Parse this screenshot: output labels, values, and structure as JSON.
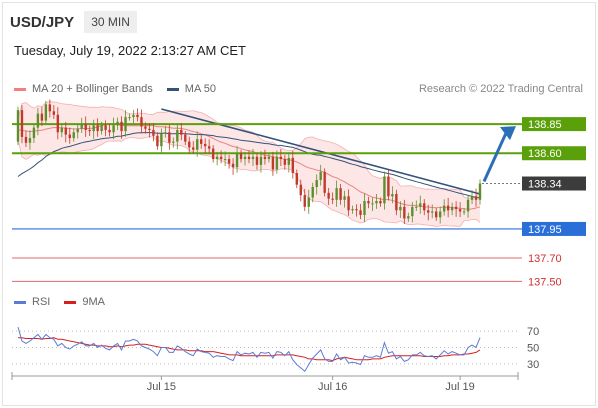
{
  "header": {
    "symbol": "USD/JPY",
    "timeframe": "30 MIN"
  },
  "timestamp": "Tuesday, July 19, 2022 2:13:27 AM CET",
  "legend": {
    "ma20": {
      "label": "MA 20 + Bollinger Bands",
      "color": "#f08080"
    },
    "ma50": {
      "label": "MA 50",
      "color": "#34527a"
    }
  },
  "credit": "Research © 2022 Trading Central",
  "rsi_legend": {
    "rsi": {
      "label": "RSI",
      "color": "#5b7bd5"
    },
    "ma9": {
      "label": "9MA",
      "color": "#d62020"
    }
  },
  "colors": {
    "green": "#5aa00a",
    "blue": "#2a6ed8",
    "red": "#e06a6a",
    "up_candle": "#5c8f2c",
    "down_candle": "#c0392b",
    "arrow": "#2b6fb9",
    "current": "#3c3c3c"
  },
  "chart_data": [
    {
      "type": "candlestick",
      "ylim": [
        137.4,
        139.1
      ],
      "x_tick_labels": [
        "Jul 15",
        "Jul 16",
        "Jul 19"
      ],
      "levels": [
        {
          "price": 138.85,
          "label": "138.85",
          "kind": "resistance"
        },
        {
          "price": 138.6,
          "label": "138.60",
          "kind": "resistance"
        },
        {
          "price": 138.34,
          "label": "138.34",
          "kind": "current"
        },
        {
          "price": 137.95,
          "label": "137.95",
          "kind": "pivot"
        },
        {
          "price": 137.7,
          "label": "137.70",
          "kind": "support"
        },
        {
          "price": 137.5,
          "label": "137.50",
          "kind": "support"
        }
      ],
      "close": [
        138.97,
        138.74,
        138.69,
        138.73,
        138.82,
        138.94,
        138.88,
        139.02,
        138.96,
        138.93,
        138.78,
        138.82,
        138.76,
        138.73,
        138.78,
        138.81,
        138.85,
        138.8,
        138.79,
        138.84,
        138.79,
        138.84,
        138.8,
        138.78,
        138.84,
        138.87,
        138.79,
        138.91,
        138.91,
        138.93,
        138.91,
        138.83,
        138.81,
        138.8,
        138.75,
        138.66,
        138.77,
        138.78,
        138.69,
        138.7,
        138.8,
        138.76,
        138.7,
        138.65,
        138.63,
        138.72,
        138.68,
        138.66,
        138.64,
        138.55,
        138.57,
        138.55,
        138.55,
        138.51,
        138.48,
        138.6,
        138.55,
        138.57,
        138.55,
        138.57,
        138.5,
        138.57,
        138.55,
        138.57,
        138.46,
        138.57,
        138.55,
        138.5,
        138.56,
        138.43,
        138.33,
        138.24,
        138.14,
        138.22,
        138.31,
        138.37,
        138.44,
        138.26,
        138.21,
        138.2,
        138.3,
        138.2,
        138.23,
        138.11,
        138.12,
        138.11,
        138.07,
        138.19,
        138.17,
        138.17,
        138.19,
        138.17,
        138.4,
        138.23,
        138.25,
        138.11,
        138.14,
        138.04,
        138.06,
        138.14,
        138.14,
        138.17,
        138.11,
        138.09,
        138.1,
        138.05,
        138.1,
        138.15,
        138.11,
        138.14,
        138.12,
        138.1,
        138.1,
        138.2,
        138.23,
        138.2,
        138.34
      ],
      "series": [
        {
          "name": "MA 50",
          "values": [
            138.4,
            138.425,
            138.445,
            138.465,
            138.489,
            138.519,
            138.542,
            138.572,
            138.595,
            138.614,
            138.627,
            138.642,
            138.652,
            138.659,
            138.669,
            138.679,
            138.69,
            138.697,
            138.703,
            138.712,
            138.717,
            138.724,
            138.729,
            138.732,
            138.738,
            138.745,
            138.747,
            138.756,
            138.762,
            138.77,
            138.775,
            138.776,
            138.777,
            138.777,
            138.776,
            138.772,
            138.772,
            138.772,
            138.769,
            138.767,
            138.769,
            138.769,
            138.768,
            138.765,
            138.762,
            138.761,
            138.76,
            138.758,
            138.755,
            138.751,
            138.743,
            138.739,
            138.736,
            138.731,
            138.724,
            138.719,
            138.711,
            138.708,
            138.704,
            138.699,
            138.693,
            138.689,
            138.684,
            138.681,
            138.674,
            138.669,
            138.667,
            138.661,
            138.656,
            138.65,
            138.639,
            138.627,
            138.613,
            138.6,
            138.591,
            138.585,
            138.582,
            138.572,
            138.565,
            138.556,
            138.546,
            138.538,
            138.528,
            138.515,
            138.505,
            138.497,
            138.485,
            138.477,
            138.468,
            138.458,
            138.449,
            138.44,
            138.434,
            138.425,
            138.418,
            138.408,
            138.397,
            138.386,
            138.375,
            138.366,
            138.356,
            138.347,
            138.337,
            138.328,
            138.318,
            138.309,
            138.3,
            138.293,
            138.283,
            138.274,
            138.265,
            138.255,
            138.247,
            138.238,
            138.229,
            138.221,
            138.216
          ]
        },
        {
          "name": "MA 20",
          "values": [
            138.8,
            138.797,
            138.791,
            138.787,
            138.788,
            138.795,
            138.797,
            138.807,
            138.815,
            138.821,
            138.819,
            138.819,
            138.815,
            138.812,
            138.809,
            138.81,
            138.812,
            138.812,
            138.812,
            138.817,
            138.826,
            138.837,
            138.846,
            138.85,
            138.848,
            138.845,
            138.84,
            138.838,
            138.836,
            138.837,
            138.836,
            138.836,
            138.837,
            138.838,
            138.836,
            138.828,
            138.827,
            138.825,
            138.821,
            138.815,
            138.816,
            138.812,
            138.806,
            138.795,
            138.786,
            138.779,
            138.767,
            138.757,
            138.744,
            138.727,
            138.71,
            138.696,
            138.685,
            138.671,
            138.658,
            138.65,
            138.639,
            138.629,
            138.622,
            138.615,
            138.6,
            138.591,
            138.583,
            138.578,
            138.57,
            138.563,
            138.556,
            138.548,
            138.544,
            138.538,
            138.525,
            138.509,
            138.489,
            138.475,
            138.466,
            138.455,
            138.449,
            138.434,
            138.417,
            138.399,
            138.389,
            138.371,
            138.355,
            138.332,
            138.315,
            138.292,
            138.268,
            138.255,
            138.238,
            138.222,
            138.216,
            138.206,
            138.203,
            138.202,
            138.195,
            138.183,
            138.169,
            138.16,
            138.154,
            138.153,
            138.149,
            138.146,
            138.139,
            138.138,
            138.134,
            138.132,
            138.134,
            138.138,
            138.134,
            138.133,
            138.13,
            138.128,
            138.122,
            138.118,
            138.122,
            138.13,
            138.14
          ]
        }
      ],
      "trend_lines": [
        {
          "from": [
            36,
            138.98
          ],
          "to": [
            116,
            138.25
          ]
        }
      ]
    },
    {
      "type": "line",
      "yticks": [
        70,
        50,
        30
      ],
      "series": [
        {
          "name": "RSI",
          "values": [
            75,
            58,
            55,
            58,
            62,
            66,
            60,
            66,
            62,
            60,
            52,
            55,
            50,
            48,
            52,
            54,
            57,
            52,
            52,
            55,
            50,
            53,
            49,
            47,
            52,
            55,
            47,
            58,
            58,
            60,
            58,
            52,
            50,
            48,
            45,
            40,
            50,
            50,
            44,
            44,
            52,
            49,
            45,
            42,
            40,
            48,
            45,
            44,
            43,
            38,
            40,
            39,
            39,
            36,
            34,
            45,
            41,
            43,
            42,
            44,
            38,
            44,
            43,
            44,
            37,
            45,
            44,
            40,
            45,
            35,
            29,
            25,
            21,
            29,
            37,
            42,
            47,
            36,
            33,
            33,
            42,
            35,
            38,
            31,
            32,
            31,
            29,
            40,
            38,
            38,
            40,
            38,
            56,
            43,
            45,
            36,
            39,
            33,
            35,
            41,
            41,
            44,
            40,
            39,
            40,
            36,
            41,
            46,
            42,
            45,
            43,
            41,
            41,
            50,
            53,
            50,
            62
          ]
        },
        {
          "name": "9MA",
          "values": [
            62,
            62,
            61,
            61,
            61,
            61,
            60,
            61,
            61,
            62,
            60,
            60,
            59,
            58,
            57,
            56,
            55,
            54,
            53,
            53,
            52,
            52,
            52,
            51,
            51,
            52,
            51,
            52,
            53,
            53,
            54,
            54,
            54,
            53,
            52,
            51,
            50,
            50,
            49,
            48,
            47,
            47,
            47,
            46,
            46,
            46,
            46,
            45,
            45,
            45,
            44,
            43,
            42,
            41,
            41,
            41,
            40,
            40,
            40,
            40,
            40,
            40,
            40,
            40,
            40,
            41,
            41,
            41,
            41,
            41,
            40,
            39,
            38,
            36,
            36,
            35,
            35,
            35,
            35,
            34,
            36,
            37,
            38,
            37,
            36,
            35,
            35,
            35,
            35,
            36,
            36,
            36,
            38,
            39,
            40,
            40,
            40,
            40,
            40,
            40,
            40,
            40,
            39,
            39,
            39,
            39,
            39,
            40,
            40,
            41,
            41,
            41,
            42,
            42,
            43,
            44,
            47
          ]
        }
      ]
    }
  ]
}
